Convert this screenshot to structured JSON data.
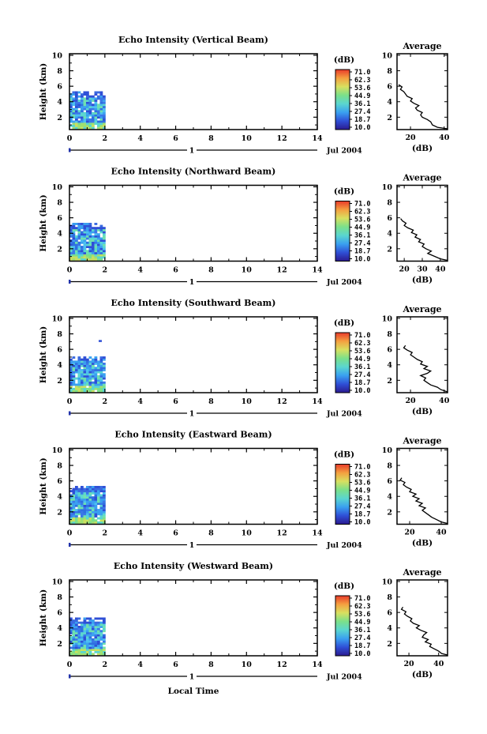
{
  "chart_data": {
    "type": "heatmap",
    "panels": [
      {
        "title": "Echo Intensity (Vertical Beam)",
        "profile_x_ticks": [
          20,
          40
        ],
        "profile_x_range": [
          12,
          42
        ],
        "profile": [
          [
            42,
            0.5
          ],
          [
            36,
            0.7
          ],
          [
            33,
            1.0
          ],
          [
            32,
            1.4
          ],
          [
            30,
            1.7
          ],
          [
            27,
            2.0
          ],
          [
            26,
            2.3
          ],
          [
            27,
            2.6
          ],
          [
            24,
            2.9
          ],
          [
            23,
            3.2
          ],
          [
            25,
            3.5
          ],
          [
            22,
            3.8
          ],
          [
            20,
            4.1
          ],
          [
            21,
            4.4
          ],
          [
            18,
            4.7
          ],
          [
            17,
            5.0
          ],
          [
            16,
            5.3
          ],
          [
            14,
            5.6
          ],
          [
            15,
            5.9
          ],
          [
            13,
            6.2
          ]
        ],
        "echo_top_km": 5.3
      },
      {
        "title": "Echo Intensity (Northward Beam)",
        "profile_x_ticks": [
          20,
          30,
          40
        ],
        "profile_x_range": [
          16,
          44
        ],
        "profile": [
          [
            44,
            0.5
          ],
          [
            40,
            0.7
          ],
          [
            37,
            1.0
          ],
          [
            33,
            1.4
          ],
          [
            35,
            1.7
          ],
          [
            32,
            2.0
          ],
          [
            30,
            2.3
          ],
          [
            31,
            2.6
          ],
          [
            28,
            2.9
          ],
          [
            29,
            3.2
          ],
          [
            26,
            3.5
          ],
          [
            27,
            3.8
          ],
          [
            24,
            4.1
          ],
          [
            25,
            4.4
          ],
          [
            22,
            4.7
          ],
          [
            20,
            5.0
          ],
          [
            21,
            5.3
          ],
          [
            19,
            5.6
          ],
          [
            18,
            5.9
          ]
        ],
        "echo_top_km": 5.1
      },
      {
        "title": "Echo Intensity (Southward Beam)",
        "profile_x_ticks": [
          20,
          40
        ],
        "profile_x_range": [
          12,
          42
        ],
        "profile": [
          [
            42,
            0.5
          ],
          [
            38,
            0.8
          ],
          [
            36,
            1.1
          ],
          [
            32,
            1.4
          ],
          [
            30,
            1.7
          ],
          [
            28,
            2.0
          ],
          [
            29,
            2.3
          ],
          [
            26,
            2.6
          ],
          [
            30,
            2.9
          ],
          [
            32,
            3.2
          ],
          [
            28,
            3.5
          ],
          [
            30,
            3.8
          ],
          [
            26,
            4.1
          ],
          [
            27,
            4.4
          ],
          [
            24,
            4.7
          ],
          [
            22,
            5.0
          ],
          [
            20,
            5.3
          ],
          [
            21,
            5.6
          ],
          [
            18,
            5.9
          ],
          [
            16,
            6.2
          ],
          [
            17,
            6.5
          ]
        ],
        "echo_top_km": 5.0
      },
      {
        "title": "Echo Intensity (Eastward Beam)",
        "profile_x_ticks": [
          20,
          40
        ],
        "profile_x_range": [
          12,
          44
        ],
        "profile": [
          [
            44,
            0.5
          ],
          [
            40,
            0.7
          ],
          [
            37,
            1.0
          ],
          [
            34,
            1.3
          ],
          [
            32,
            1.6
          ],
          [
            30,
            1.9
          ],
          [
            28,
            2.2
          ],
          [
            30,
            2.5
          ],
          [
            26,
            2.8
          ],
          [
            28,
            3.1
          ],
          [
            24,
            3.4
          ],
          [
            26,
            3.7
          ],
          [
            22,
            4.0
          ],
          [
            24,
            4.3
          ],
          [
            20,
            4.6
          ],
          [
            21,
            4.9
          ],
          [
            18,
            5.2
          ],
          [
            16,
            5.5
          ],
          [
            17,
            5.8
          ],
          [
            14,
            6.1
          ],
          [
            15,
            6.4
          ]
        ],
        "echo_top_km": 5.2
      },
      {
        "title": "Echo Intensity (Westward Beam)",
        "profile_x_ticks": [
          20,
          40
        ],
        "profile_x_range": [
          12,
          46
        ],
        "profile": [
          [
            46,
            0.5
          ],
          [
            42,
            0.7
          ],
          [
            40,
            1.0
          ],
          [
            37,
            1.3
          ],
          [
            34,
            1.6
          ],
          [
            35,
            1.9
          ],
          [
            31,
            2.2
          ],
          [
            33,
            2.5
          ],
          [
            29,
            2.8
          ],
          [
            30,
            3.1
          ],
          [
            32,
            3.4
          ],
          [
            28,
            3.7
          ],
          [
            25,
            4.0
          ],
          [
            27,
            4.3
          ],
          [
            23,
            4.6
          ],
          [
            21,
            4.9
          ],
          [
            22,
            5.2
          ],
          [
            19,
            5.5
          ],
          [
            17,
            5.8
          ],
          [
            18,
            6.1
          ],
          [
            15,
            6.4
          ],
          [
            16,
            6.7
          ]
        ],
        "echo_top_km": 5.3
      }
    ],
    "ylabel": "Height (km)",
    "y_ticks": [
      2,
      4,
      6,
      8,
      10
    ],
    "y_range": [
      0.4,
      10.2
    ],
    "x_ticks": [
      0,
      2,
      4,
      6,
      8,
      10,
      12,
      14
    ],
    "x_range": [
      0,
      14
    ],
    "xlabel": "Local Time",
    "date_label": "Jul 2004",
    "day_marker": "1",
    "data_extent_hours": [
      0,
      2
    ],
    "colorbar_title": "(dB)",
    "colorbar_ticks": [
      "71.0",
      "62.3",
      "53.6",
      "44.9",
      "36.1",
      "27.4",
      "18.7",
      "10.0"
    ],
    "colormap": [
      "#2b1a8f",
      "#2f4fd6",
      "#3aa0f0",
      "#5ad6d0",
      "#7be08a",
      "#d8e060",
      "#f4a040",
      "#e83a2a"
    ],
    "profile_title": "Average",
    "profile_xlabel": "(dB)"
  }
}
